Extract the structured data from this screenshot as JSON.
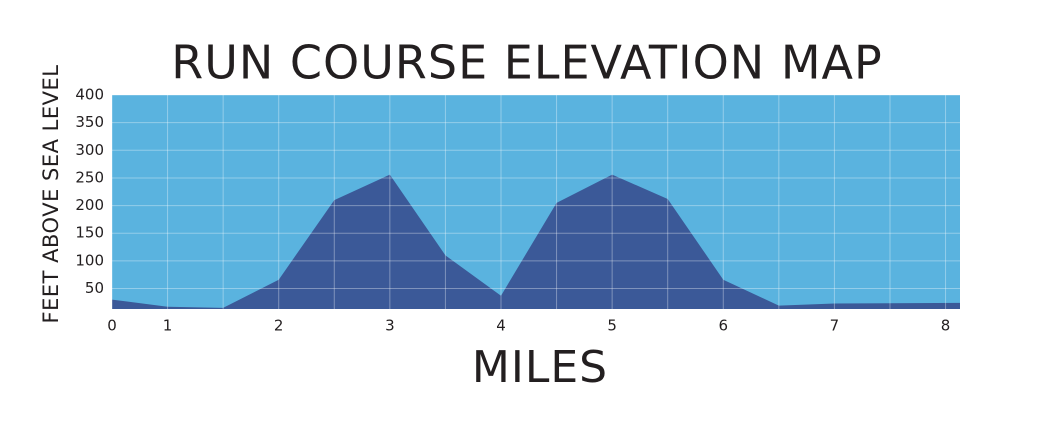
{
  "chart_data": {
    "type": "area",
    "title": "RUN COURSE ELEVATION MAP",
    "x_label": "MILES",
    "y_label": "FEET ABOVE SEA LEVEL",
    "x": [
      0.5,
      1,
      1.5,
      2,
      2.5,
      3,
      3.5,
      4,
      4.5,
      5,
      5.5,
      6,
      6.5,
      7,
      8.13
    ],
    "values": [
      30,
      17,
      15,
      66,
      210,
      256,
      110,
      37,
      205,
      256,
      212,
      66,
      19,
      23,
      24
    ],
    "color": "#3b5998",
    "background": "#5ab3df",
    "xlim": [
      0.5,
      8.13
    ],
    "ylim": [
      13,
      400
    ],
    "xticks": [
      {
        "value": 0.5,
        "label": "0"
      },
      1,
      2,
      3,
      4,
      5,
      6,
      7,
      8
    ],
    "x_minor_ticks": [
      1.5,
      2.5,
      3.5,
      4.5,
      5.5,
      6.5,
      7.5
    ],
    "yticks": [
      50,
      100,
      150,
      200,
      250,
      300,
      350,
      400
    ],
    "grid": true
  }
}
